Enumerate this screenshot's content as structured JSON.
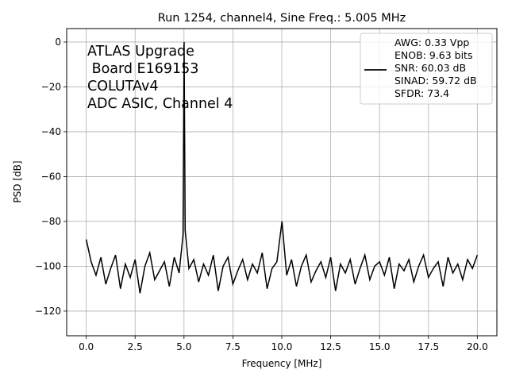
{
  "chart_data": {
    "type": "line",
    "title": "Run 1254, channel4, Sine Freq.: 5.005 MHz",
    "xlabel": "Frequency [MHz]",
    "ylabel": "PSD [dB]",
    "xlim": [
      -1.0,
      21.0
    ],
    "ylim": [
      -131,
      6
    ],
    "x_ticks": [
      0.0,
      2.5,
      5.0,
      7.5,
      10.0,
      12.5,
      15.0,
      17.5,
      20.0
    ],
    "x_tick_labels": [
      "0.0",
      "2.5",
      "5.0",
      "7.5",
      "10.0",
      "12.5",
      "15.0",
      "17.5",
      "20.0"
    ],
    "y_ticks": [
      0,
      -20,
      -40,
      -60,
      -80,
      -100,
      -120
    ],
    "y_tick_labels": [
      "0",
      "−20",
      "−40",
      "−60",
      "−80",
      "−100",
      "−120"
    ],
    "grid": true,
    "line_color": "#000000",
    "series": [
      {
        "x": [
          0.0,
          0.25,
          0.5,
          0.75,
          1.0,
          1.25,
          1.5,
          1.75,
          2.0,
          2.25,
          2.5,
          2.75,
          3.0,
          3.25,
          3.5,
          3.75,
          4.0,
          4.25,
          4.5,
          4.75,
          4.95,
          5.005,
          5.06,
          5.25,
          5.5,
          5.75,
          6.0,
          6.25,
          6.5,
          6.75,
          7.0,
          7.25,
          7.5,
          7.75,
          8.0,
          8.25,
          8.5,
          8.75,
          9.0,
          9.25,
          9.5,
          9.75,
          10.01,
          10.25,
          10.5,
          10.75,
          11.0,
          11.25,
          11.5,
          11.75,
          12.0,
          12.25,
          12.5,
          12.75,
          13.0,
          13.25,
          13.5,
          13.75,
          14.0,
          14.25,
          14.5,
          14.75,
          15.0,
          15.25,
          15.5,
          15.75,
          16.0,
          16.25,
          16.5,
          16.75,
          17.0,
          17.25,
          17.5,
          17.75,
          18.0,
          18.25,
          18.5,
          18.75,
          19.0,
          19.25,
          19.5,
          19.75,
          20.0
        ],
        "y": [
          -88,
          -98,
          -104,
          -96,
          -108,
          -101,
          -95,
          -110,
          -99,
          -105,
          -97,
          -112,
          -100,
          -94,
          -106,
          -102,
          -98,
          -109,
          -96,
          -103,
          -86,
          0,
          -84,
          -101,
          -97,
          -107,
          -99,
          -104,
          -95,
          -111,
          -100,
          -96,
          -108,
          -102,
          -97,
          -106,
          -99,
          -103,
          -94,
          -110,
          -101,
          -98,
          -80,
          -104,
          -97,
          -109,
          -100,
          -95,
          -107,
          -102,
          -98,
          -105,
          -96,
          -111,
          -99,
          -103,
          -97,
          -108,
          -101,
          -95,
          -106,
          -100,
          -98,
          -104,
          -96,
          -110,
          -99,
          -102,
          -97,
          -107,
          -100,
          -95,
          -105,
          -101,
          -98,
          -109,
          -96,
          -103,
          -99,
          -106,
          -97,
          -101,
          -95
        ]
      }
    ],
    "annotation": {
      "lines": [
        "ATLAS Upgrade",
        " Board E169153",
        "COLUTAv4",
        "ADC ASIC, Channel 4"
      ]
    },
    "legend": {
      "placement": "top-right",
      "lines": [
        "AWG: 0.33 Vpp",
        "ENOB: 9.63 bits",
        "SNR: 60.03 dB",
        "SINAD: 59.72 dB",
        "SFDR: 73.4"
      ]
    }
  }
}
